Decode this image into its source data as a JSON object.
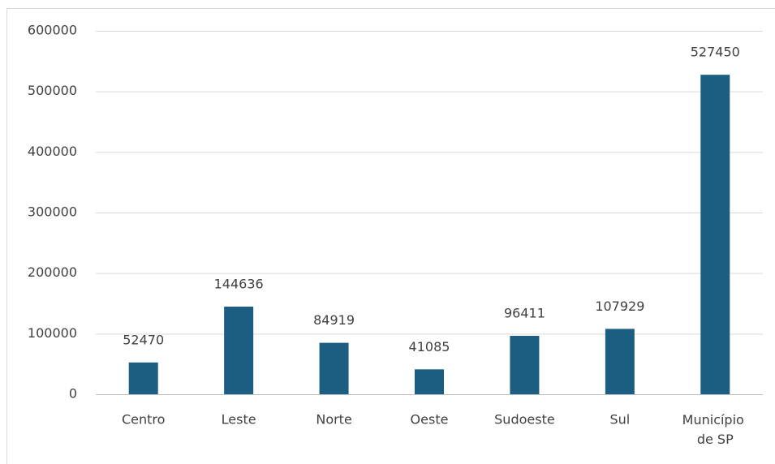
{
  "chart_data": {
    "type": "bar",
    "categories": [
      "Centro",
      "Leste",
      "Norte",
      "Oeste",
      "Sudoeste",
      "Sul",
      "Município de SP"
    ],
    "values": [
      52470,
      144636,
      84919,
      41085,
      96411,
      107929,
      527450
    ],
    "color": "#1b5e82",
    "ylim": [
      0,
      600000
    ],
    "yticks": [
      0,
      100000,
      200000,
      300000,
      400000,
      500000,
      600000
    ],
    "grid": true,
    "data_labels": true
  }
}
